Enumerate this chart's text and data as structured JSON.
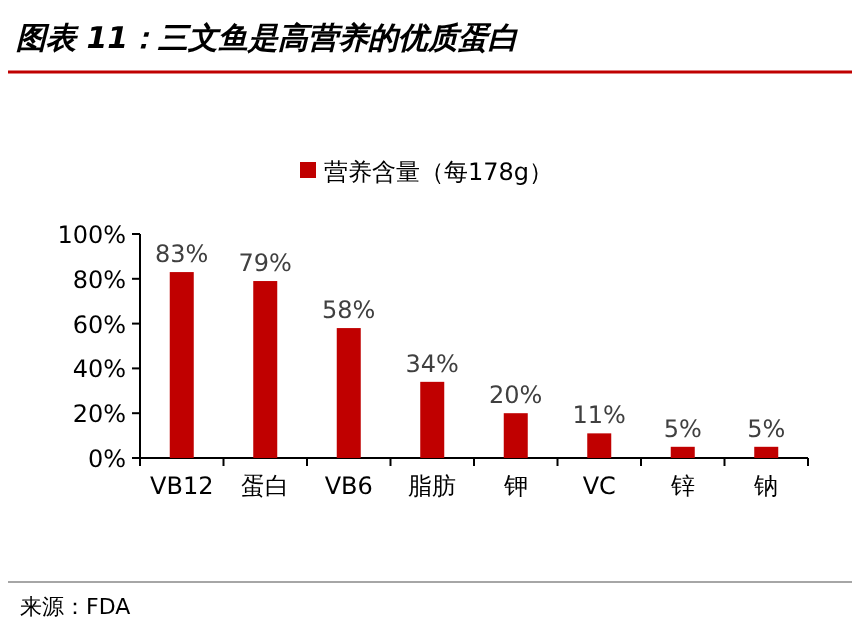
{
  "chart_data": {
    "type": "bar",
    "title": "图表 11：三文鱼是高营养的优质蛋白",
    "categories": [
      "VB12",
      "蛋白",
      "VB6",
      "脂肪",
      "钾",
      "VC",
      "锌",
      "钠"
    ],
    "series": [
      {
        "name": "营养含量（每178g）",
        "color": "#c00000",
        "values": [
          83,
          79,
          58,
          34,
          20,
          11,
          5,
          5
        ],
        "value_labels": [
          "83%",
          "79%",
          "58%",
          "34%",
          "20%",
          "11%",
          "5%",
          "5%"
        ]
      }
    ],
    "ylim": [
      0,
      100
    ],
    "yticks": [
      {
        "value": 0,
        "label": "0%"
      },
      {
        "value": 20,
        "label": "20%"
      },
      {
        "value": 40,
        "label": "40%"
      },
      {
        "value": 60,
        "label": "60%"
      },
      {
        "value": 80,
        "label": "80%"
      },
      {
        "value": 100,
        "label": "100%"
      }
    ],
    "legend": "top",
    "grid": false,
    "annotations": [
      "来源：FDA"
    ]
  }
}
